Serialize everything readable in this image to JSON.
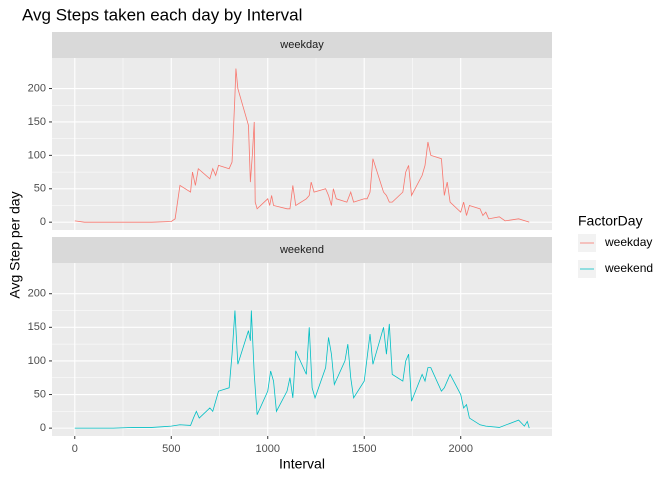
{
  "chart_data": {
    "type": "line",
    "title": "Avg Steps taken each day by Interval",
    "x_label": "Interval",
    "y_label": "Avg Step per day",
    "legend_title": "FactorDay",
    "xlim": [
      -118,
      2473
    ],
    "xticks": [
      0,
      500,
      1000,
      1500,
      2000
    ],
    "ylim": [
      -11.7,
      245.7
    ],
    "yticks": [
      0,
      50,
      100,
      150,
      200
    ],
    "grid": true,
    "series": [
      {
        "name": "weekday",
        "color": "#F8766D",
        "x": [
          0,
          50,
          100,
          200,
          300,
          400,
          500,
          520,
          545,
          600,
          610,
          625,
          640,
          700,
          715,
          730,
          745,
          800,
          815,
          830,
          835,
          845,
          855,
          900,
          910,
          920,
          930,
          935,
          945,
          1000,
          1010,
          1020,
          1030,
          1100,
          1115,
          1130,
          1145,
          1200,
          1215,
          1225,
          1240,
          1300,
          1315,
          1330,
          1340,
          1355,
          1410,
          1430,
          1445,
          1500,
          1515,
          1530,
          1545,
          1600,
          1615,
          1630,
          1645,
          1700,
          1715,
          1730,
          1745,
          1800,
          1815,
          1830,
          1845,
          1900,
          1915,
          1930,
          1945,
          2000,
          2015,
          2030,
          2045,
          2100,
          2115,
          2130,
          2145,
          2200,
          2230,
          2300,
          2355
        ],
        "values": [
          2,
          0,
          0,
          0,
          0,
          0,
          1,
          5,
          55,
          45,
          75,
          55,
          80,
          65,
          80,
          70,
          85,
          80,
          90,
          190,
          230,
          200,
          190,
          145,
          60,
          100,
          150,
          30,
          20,
          35,
          25,
          40,
          25,
          20,
          20,
          55,
          25,
          35,
          40,
          60,
          45,
          50,
          40,
          25,
          50,
          35,
          30,
          45,
          30,
          35,
          35,
          45,
          95,
          45,
          40,
          30,
          30,
          45,
          75,
          85,
          40,
          70,
          85,
          120,
          100,
          95,
          40,
          60,
          30,
          15,
          30,
          10,
          25,
          20,
          10,
          15,
          5,
          8,
          2,
          5,
          0
        ]
      },
      {
        "name": "weekend",
        "color": "#00BFC4",
        "x": [
          0,
          100,
          200,
          300,
          400,
          450,
          500,
          545,
          600,
          615,
          630,
          645,
          700,
          715,
          730,
          745,
          800,
          815,
          830,
          845,
          900,
          910,
          915,
          930,
          945,
          1000,
          1015,
          1030,
          1045,
          1100,
          1115,
          1130,
          1145,
          1200,
          1215,
          1230,
          1245,
          1300,
          1315,
          1330,
          1345,
          1400,
          1415,
          1430,
          1445,
          1500,
          1530,
          1545,
          1600,
          1615,
          1630,
          1645,
          1700,
          1715,
          1730,
          1745,
          1800,
          1815,
          1830,
          1845,
          1900,
          1915,
          1945,
          2000,
          2015,
          2030,
          2045,
          2100,
          2130,
          2200,
          2300,
          2330,
          2345,
          2355
        ],
        "values": [
          0,
          0,
          0,
          1,
          1,
          2,
          3,
          5,
          4,
          15,
          25,
          15,
          30,
          25,
          40,
          55,
          60,
          110,
          175,
          95,
          145,
          130,
          175,
          80,
          20,
          55,
          85,
          70,
          25,
          55,
          75,
          45,
          115,
          80,
          150,
          60,
          45,
          90,
          135,
          110,
          65,
          100,
          125,
          75,
          45,
          70,
          140,
          95,
          150,
          110,
          155,
          80,
          70,
          100,
          110,
          40,
          80,
          70,
          90,
          90,
          55,
          60,
          80,
          50,
          30,
          35,
          15,
          5,
          3,
          1,
          12,
          3,
          10,
          0
        ]
      }
    ]
  }
}
